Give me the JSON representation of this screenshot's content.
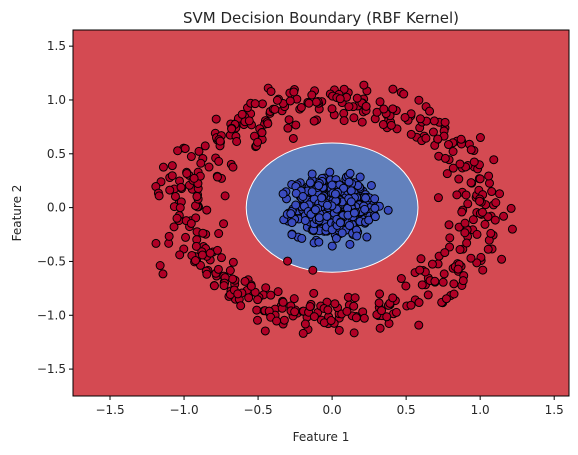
{
  "chart_data": {
    "type": "scatter",
    "title": "SVM Decision Boundary (RBF Kernel)",
    "xlabel": "Feature 1",
    "ylabel": "Feature 2",
    "xlim": [
      -1.75,
      1.6
    ],
    "ylim": [
      -1.75,
      1.65
    ],
    "xticks": [
      -1.5,
      -1.0,
      -0.5,
      0.0,
      0.5,
      1.0,
      1.5
    ],
    "yticks": [
      -1.5,
      -1.0,
      -0.5,
      0.0,
      0.5,
      1.0,
      1.5
    ],
    "grid": false,
    "legend": "none",
    "background_region": {
      "class": "outer",
      "color": "#d44a52"
    },
    "decision_region": {
      "class": "inner",
      "color": "#6281bd",
      "boundary_color": "#ffffff",
      "center": [
        0.0,
        0.0
      ],
      "radius_x": 0.58,
      "radius_y": 0.6
    },
    "series": [
      {
        "class": "outer",
        "color": "#b00026",
        "edge": "#000000",
        "count": 500,
        "shape": "ring",
        "center": [
          0.0,
          0.0
        ],
        "radius_mean": 1.0,
        "radius_std": 0.1
      },
      {
        "class": "inner",
        "color": "#3a4cc0",
        "edge": "#000000",
        "count": 500,
        "shape": "disk",
        "center": [
          0.0,
          0.0
        ],
        "std": 0.13,
        "max_radius": 0.38
      }
    ]
  }
}
